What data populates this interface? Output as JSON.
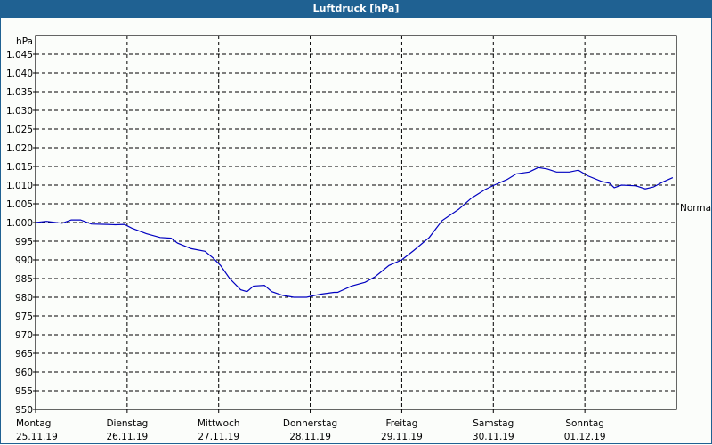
{
  "window": {
    "title": "Luftdruck [hPa]"
  },
  "colors": {
    "titlebar": "#1f6192",
    "line": "#0000c0",
    "grid": "#000000",
    "background": "#fbfdfa"
  },
  "chart_data": {
    "type": "line",
    "title": "Luftdruck [hPa]",
    "ylabel": "hPa",
    "xlabel": "",
    "ylim": [
      950,
      1050
    ],
    "yticks": [
      "950",
      "955",
      "960",
      "965",
      "970",
      "975",
      "980",
      "985",
      "990",
      "995",
      "1.000",
      "1.005",
      "1.010",
      "1.015",
      "1.020",
      "1.025",
      "1.030",
      "1.035",
      "1.040",
      "1.045"
    ],
    "xticks": [
      {
        "day": "Montag",
        "date": "25.11.19"
      },
      {
        "day": "Dienstag",
        "date": "26.11.19"
      },
      {
        "day": "Mittwoch",
        "date": "27.11.19"
      },
      {
        "day": "Donnerstag",
        "date": "28.11.19"
      },
      {
        "day": "Freitag",
        "date": "29.11.19"
      },
      {
        "day": "Samstag",
        "date": "30.11.19"
      },
      {
        "day": "Sonntag",
        "date": "01.12.19"
      }
    ],
    "grid": true,
    "annotations": [
      {
        "text": "Normal",
        "y": 1005
      }
    ],
    "series": [
      {
        "name": "Luftdruck",
        "x_days": [
          0.0,
          0.12,
          0.29,
          0.39,
          0.49,
          0.61,
          0.78,
          0.87,
          0.97,
          1.05,
          1.21,
          1.36,
          1.48,
          1.55,
          1.7,
          1.85,
          1.94,
          2.02,
          2.12,
          2.24,
          2.31,
          2.38,
          2.5,
          2.58,
          2.7,
          2.82,
          2.96,
          3.11,
          3.26,
          3.3,
          3.45,
          3.6,
          3.71,
          3.86,
          4.0,
          4.13,
          4.3,
          4.44,
          4.62,
          4.76,
          4.91,
          5.01,
          5.15,
          5.25,
          5.39,
          5.49,
          5.59,
          5.69,
          5.83,
          5.93,
          6.03,
          6.18,
          6.27,
          6.32,
          6.4,
          6.56,
          6.66,
          6.75,
          6.85,
          6.96
        ],
        "values": [
          1000.0,
          1000.3,
          999.8,
          1000.7,
          1000.7,
          999.6,
          999.5,
          999.4,
          999.5,
          998.5,
          997.0,
          996.0,
          995.8,
          994.5,
          993.0,
          992.3,
          990.5,
          988.5,
          985.0,
          982.0,
          981.5,
          983.0,
          983.2,
          981.5,
          980.5,
          980.0,
          980.0,
          980.8,
          981.3,
          981.3,
          983.0,
          984.0,
          985.5,
          988.5,
          990.0,
          992.5,
          996.0,
          1000.5,
          1003.5,
          1006.5,
          1008.8,
          1010.0,
          1011.5,
          1013.0,
          1013.5,
          1014.7,
          1014.3,
          1013.5,
          1013.5,
          1014.0,
          1012.5,
          1011.0,
          1010.5,
          1009.3,
          1010.0,
          1009.8,
          1009.0,
          1009.5,
          1010.8,
          1012.0
        ]
      }
    ]
  }
}
